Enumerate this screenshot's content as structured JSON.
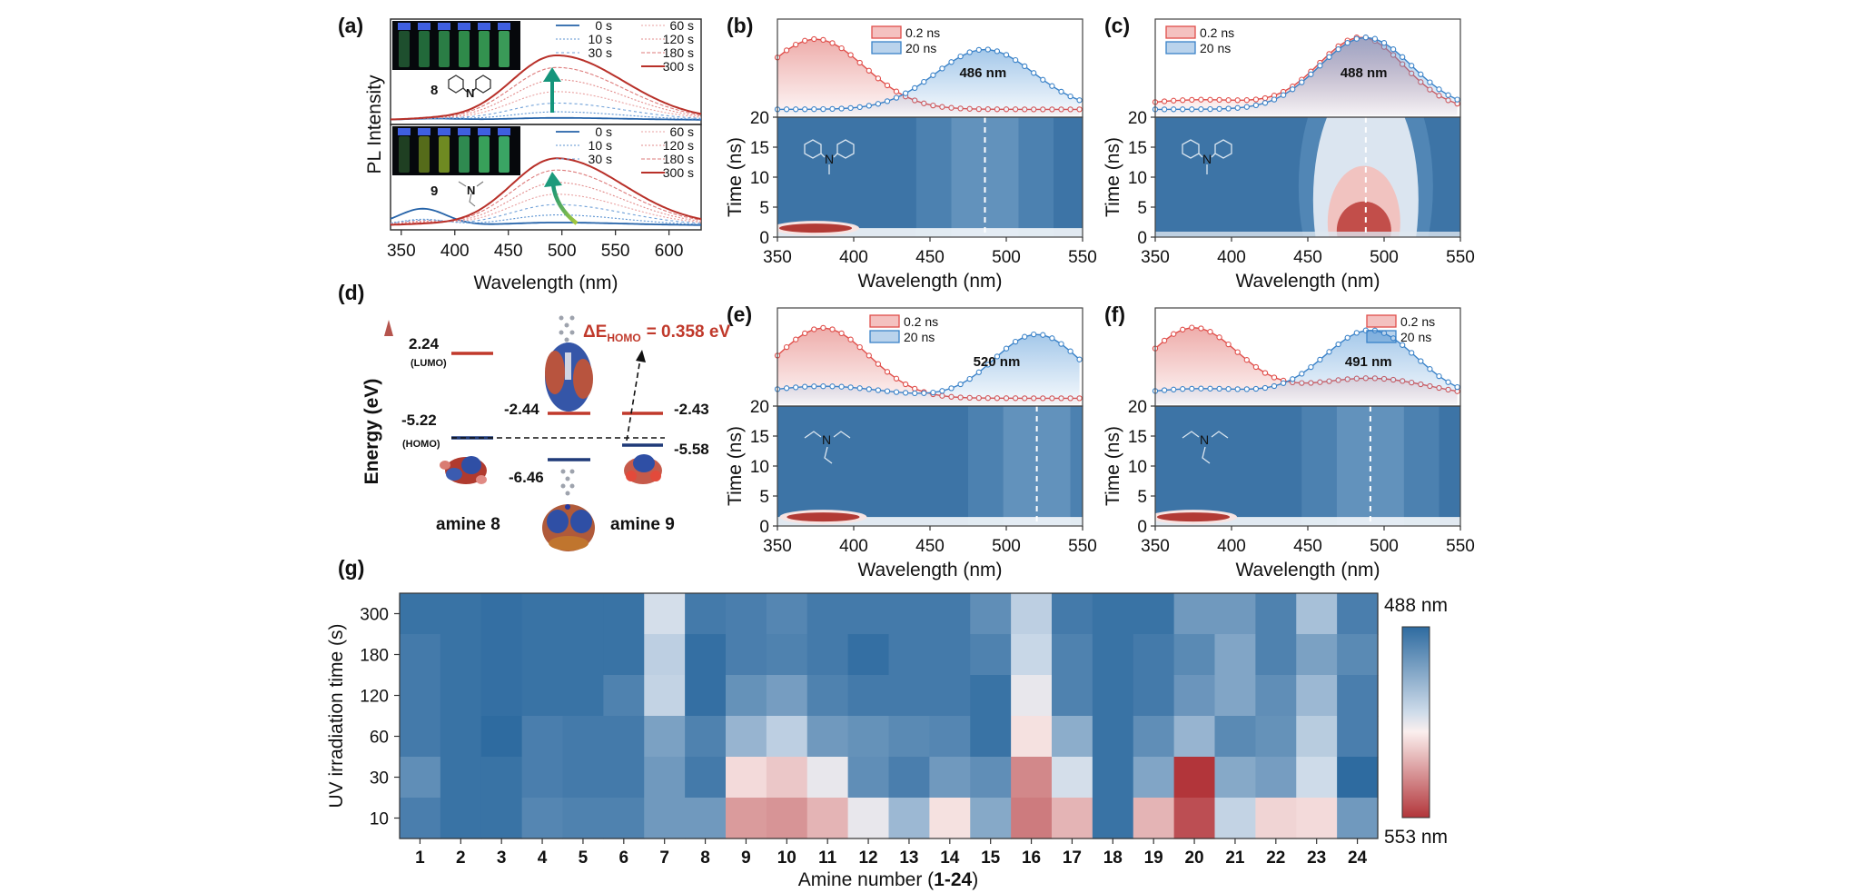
{
  "panel_labels": [
    "(a)",
    "(b)",
    "(c)",
    "(d)",
    "(e)",
    "(f)",
    "(g)"
  ],
  "colors": {
    "red": "#c0392b",
    "blue": "#3a7fc3",
    "navy": "#1f3a78",
    "heat_blue": "#3d74a6",
    "heat_red": "#b23a35"
  },
  "chart_data": [
    {
      "type": "line",
      "panel": "(a)",
      "ylabel": "PL Intensity",
      "xlabel": "Wavelength (nm)",
      "xticks": [
        350,
        400,
        450,
        500,
        550,
        600
      ],
      "xlim": [
        340,
        630
      ],
      "subplots": [
        {
          "compound": "8",
          "legend": [
            [
              "0 s",
              "60 s"
            ],
            [
              "10 s",
              "120 s"
            ],
            [
              "30 s",
              "180 s"
            ],
            [
              "",
              "300 s"
            ]
          ],
          "peak_wavelength": 495,
          "series": [
            {
              "name": "0 s",
              "peak": 0.03
            },
            {
              "name": "10 s",
              "peak": 0.12
            },
            {
              "name": "30 s",
              "peak": 0.25
            },
            {
              "name": "60 s",
              "peak": 0.42
            },
            {
              "name": "120 s",
              "peak": 0.6
            },
            {
              "name": "180 s",
              "peak": 0.78
            },
            {
              "name": "300 s",
              "peak": 0.96
            }
          ]
        },
        {
          "compound": "9",
          "legend": [
            [
              "0 s",
              "60 s"
            ],
            [
              "10 s",
              "120 s"
            ],
            [
              "30 s",
              "180 s"
            ],
            [
              "",
              "300 s"
            ]
          ],
          "peak_wavelength": 495,
          "series": [
            {
              "name": "0 s",
              "peak": 0.04
            },
            {
              "name": "10 s",
              "peak": 0.15
            },
            {
              "name": "30 s",
              "peak": 0.3
            },
            {
              "name": "60 s",
              "peak": 0.45
            },
            {
              "name": "120 s",
              "peak": 0.62
            },
            {
              "name": "180 s",
              "peak": 0.8
            },
            {
              "name": "300 s",
              "peak": 0.97
            }
          ]
        }
      ]
    },
    {
      "type": "heatmap",
      "panel": "(b)",
      "annotation": "486 nm",
      "peak": 486,
      "legend": [
        "0.2 ns",
        "20 ns"
      ],
      "xlabel": "Wavelength (nm)",
      "ylabel": "Time (ns)",
      "xticks": [
        350,
        400,
        450,
        500,
        550
      ],
      "yticks": [
        0,
        5,
        10,
        15,
        20
      ],
      "red_peak": 375,
      "red_width": 32,
      "blue_width": 32,
      "blue_amp": 0.75
    },
    {
      "type": "heatmap",
      "panel": "(c)",
      "annotation": "488 nm",
      "peak": 488,
      "legend": [
        "0.2 ns",
        "20 ns"
      ],
      "xlabel": "Wavelength (nm)",
      "ylabel": "Time (ns)",
      "xticks": [
        350,
        400,
        450,
        500,
        550
      ],
      "yticks": [
        0,
        5,
        10,
        15,
        20
      ],
      "red_peak": 485,
      "red_width": 28,
      "blue_width": 30,
      "blue_amp": 0.9
    },
    {
      "type": "heatmap",
      "panel": "(e)",
      "annotation": "520 nm",
      "peak": 520,
      "legend": [
        "0.2 ns",
        "20 ns"
      ],
      "xlabel": "Wavelength (nm)",
      "ylabel": "Time (ns)",
      "xticks": [
        350,
        400,
        450,
        500,
        550
      ],
      "yticks": [
        0,
        5,
        10,
        15,
        20
      ],
      "red_peak": 380,
      "red_width": 30,
      "blue_width": 28,
      "blue_amp": 0.8
    },
    {
      "type": "heatmap",
      "panel": "(f)",
      "annotation": "491 nm",
      "peak": 491,
      "legend": [
        "0.2 ns",
        "20 ns"
      ],
      "xlabel": "Wavelength (nm)",
      "ylabel": "Time (ns)",
      "xticks": [
        350,
        400,
        450,
        500,
        550
      ],
      "yticks": [
        0,
        5,
        10,
        15,
        20
      ],
      "red_peak": 375,
      "red_width": 30,
      "blue_width": 30,
      "blue_amp": 0.85
    },
    {
      "type": "diagram",
      "panel": "(d)",
      "ylabel": "Energy (eV)",
      "delta": "ΔE",
      "delta_sub": "HOMO",
      "delta_value": "= 0.358 eV",
      "amine8": {
        "name": "amine 8",
        "lumo": "2.24",
        "lumo_label": "(LUMO)",
        "homo": "-5.22",
        "homo_label": "(HOMO)"
      },
      "center": {
        "lumo": "-2.44",
        "homo": "-6.46"
      },
      "amine9": {
        "name": "amine 9",
        "lumo": "-2.43",
        "homo": "-5.58"
      }
    },
    {
      "type": "heatmap",
      "panel": "(g)",
      "xlabel_prefix": "Amine number (",
      "xlabel_bold": "1-24",
      "xlabel_suffix": ")",
      "ylabel": "UV irradiation time (s)",
      "x": [
        "1",
        "2",
        "3",
        "4",
        "5",
        "6",
        "7",
        "8",
        "9",
        "10",
        "11",
        "12",
        "13",
        "14",
        "15",
        "16",
        "17",
        "18",
        "19",
        "20",
        "21",
        "22",
        "23",
        "24"
      ],
      "y": [
        "300",
        "180",
        "120",
        "60",
        "30",
        "10"
      ],
      "colorbar": {
        "top": "488 nm",
        "bottom": "553 nm",
        "min": 488,
        "max": 553
      },
      "values": [
        [
          490,
          490,
          489,
          490,
          490,
          490,
          518,
          492,
          493,
          495,
          492,
          492,
          492,
          492,
          497,
          514,
          492,
          490,
          490,
          500,
          500,
          494,
          510,
          493
        ],
        [
          492,
          490,
          489,
          490,
          490,
          490,
          514,
          489,
          493,
          494,
          492,
          489,
          492,
          492,
          494,
          516,
          494,
          490,
          492,
          496,
          503,
          494,
          502,
          496
        ],
        [
          492,
          490,
          489,
          490,
          490,
          494,
          515,
          489,
          498,
          501,
          494,
          492,
          492,
          492,
          490,
          521,
          494,
          490,
          492,
          499,
          503,
          497,
          508,
          493
        ],
        [
          492,
          490,
          488,
          493,
          492,
          492,
          502,
          494,
          507,
          514,
          500,
          498,
          496,
          495,
          490,
          526,
          505,
          490,
          497,
          507,
          496,
          498,
          513,
          493
        ],
        [
          497,
          490,
          490,
          493,
          492,
          492,
          500,
          492,
          527,
          530,
          521,
          497,
          493,
          500,
          497,
          540,
          518,
          490,
          503,
          553,
          504,
          501,
          517,
          488
        ],
        [
          493,
          490,
          490,
          495,
          494,
          494,
          500,
          500,
          537,
          538,
          533,
          521,
          508,
          526,
          504,
          542,
          533,
          490,
          533,
          549,
          515,
          528,
          527,
          500
        ]
      ]
    }
  ]
}
